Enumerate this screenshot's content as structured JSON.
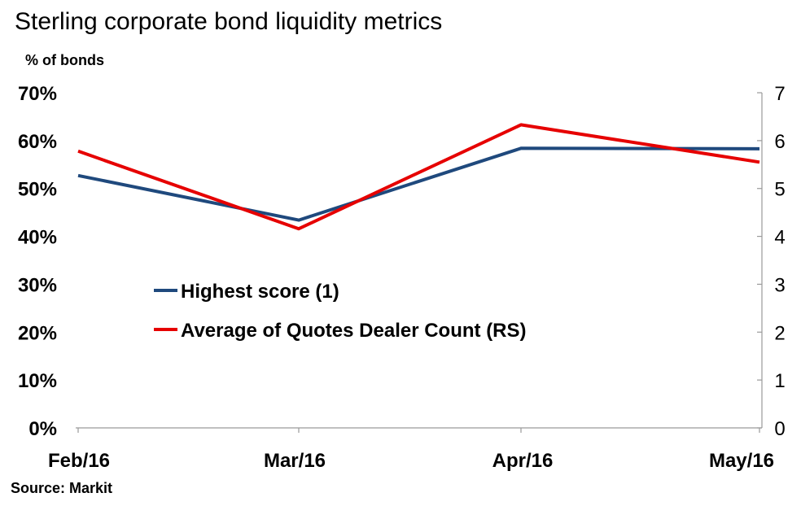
{
  "chart_data": {
    "type": "line",
    "title": "Sterling corporate bond  liquidity metrics",
    "ylabel_left": "% of bonds",
    "source": "Source: Markit",
    "categories": [
      "Feb/16",
      "Mar/16",
      "Apr/16",
      "May/16"
    ],
    "y_left": {
      "ylim": [
        0,
        70
      ],
      "ticks": [
        0,
        10,
        20,
        30,
        40,
        50,
        60,
        70
      ],
      "tick_labels": [
        "0%",
        "10%",
        "20%",
        "30%",
        "40%",
        "50%",
        "60%",
        "70%"
      ]
    },
    "y_right": {
      "ylim": [
        0,
        7
      ],
      "ticks": [
        0,
        1,
        2,
        3,
        4,
        5,
        6,
        7
      ],
      "tick_labels": [
        "0",
        "1",
        "2",
        "3",
        "4",
        "5",
        "6",
        "7"
      ]
    },
    "series": [
      {
        "name": "Highest score (1)",
        "axis": "left",
        "color": "#1F497D",
        "values": [
          52.7,
          43.4,
          58.4,
          58.3
        ]
      },
      {
        "name": "Average of Quotes Dealer Count (RS)",
        "axis": "right",
        "color": "#E60000",
        "values": [
          5.78,
          4.16,
          6.33,
          5.55
        ]
      }
    ],
    "legend_position": "center-left",
    "grid": false
  }
}
